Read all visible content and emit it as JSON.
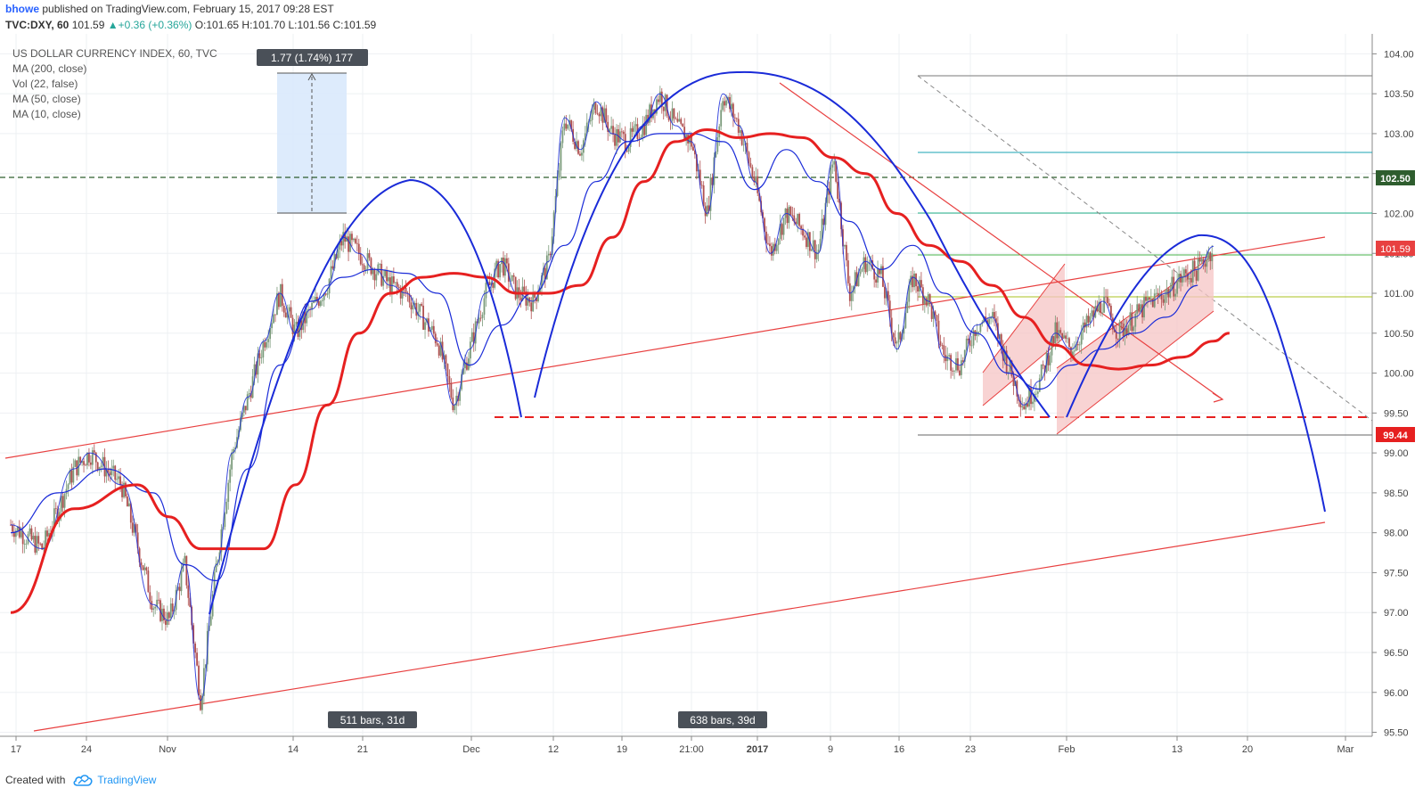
{
  "header": {
    "user": "bhowe",
    "published": "published on TradingView.com, February 15, 2017 09:28 EST",
    "symbol": "TVC:DXY, 60",
    "last": "101.59",
    "change_arrow": "▲",
    "change": "+0.36 (+0.36%)",
    "ohlc": "O:101.65 H:101.70 L:101.56 C:101.59"
  },
  "legend": {
    "title": "US DOLLAR CURRENCY INDEX, 60, TVC",
    "indicators": [
      "MA (200, close)",
      "Vol (22, false)",
      "MA (50, close)",
      "MA (10, close)"
    ]
  },
  "footer": {
    "created_with": "Created with",
    "brand": "TradingView",
    "logo_icon": "cloud-logo-icon"
  },
  "colors": {
    "candle_up": "#7a9a7a",
    "candle_down": "#b05050",
    "ma200": "#e62020",
    "ma50": "#1a2bd8",
    "ma10": "#1a2bd8",
    "arc": "#1a2bd8",
    "trendline": "#e84040",
    "grid": "#eef0f3"
  },
  "chart_data": {
    "type": "line",
    "title": "US DOLLAR CURRENCY INDEX, 60, TVC",
    "xlabel": "",
    "ylabel": "",
    "ylim": [
      95.45,
      104.25
    ],
    "x_ticks": [
      "17",
      "24",
      "Nov",
      "14",
      "21",
      "Dec",
      "12",
      "19",
      "21:00",
      "2017",
      "9",
      "16",
      "23",
      "Feb",
      "13",
      "20",
      "Mar"
    ],
    "y_ticks": [
      "95.50",
      "96.00",
      "96.50",
      "97.00",
      "97.50",
      "98.00",
      "98.50",
      "99.00",
      "99.50",
      "100.00",
      "100.50",
      "101.00",
      "101.50",
      "102.00",
      "102.50",
      "103.00",
      "103.50",
      "104.00"
    ],
    "grid": true,
    "series": [
      {
        "name": "MA (200, close)",
        "x": [
          0,
          4,
          8,
          10,
          12,
          16,
          18,
          20,
          22,
          24,
          26,
          28,
          30,
          32,
          34,
          36,
          38,
          40,
          42,
          44,
          46,
          48,
          50,
          52,
          54,
          56,
          58,
          60,
          62,
          64,
          66,
          68,
          70,
          72,
          74,
          76,
          77
        ],
        "values": [
          97.0,
          98.3,
          98.6,
          98.2,
          97.8,
          97.8,
          98.6,
          99.6,
          100.5,
          101.0,
          101.2,
          101.25,
          101.2,
          101.0,
          101.0,
          101.1,
          101.7,
          102.4,
          102.9,
          103.05,
          102.95,
          103.0,
          102.95,
          102.7,
          102.5,
          102.0,
          101.6,
          101.4,
          101.1,
          100.7,
          100.35,
          100.1,
          100.05,
          100.1,
          100.2,
          100.4,
          100.5
        ]
      },
      {
        "name": "MA (50, close)",
        "x": [
          0,
          3,
          6,
          9,
          11,
          13,
          15,
          17,
          19,
          21,
          23,
          25,
          27,
          29,
          31,
          33,
          35,
          37,
          39,
          41,
          43,
          45,
          47,
          49,
          51,
          53,
          55,
          57,
          59,
          61,
          63,
          65,
          67,
          69,
          71,
          73,
          75
        ],
        "values": [
          98.0,
          98.5,
          98.8,
          98.5,
          97.6,
          97.4,
          98.8,
          100.1,
          100.9,
          101.2,
          101.3,
          101.25,
          101.0,
          100.1,
          100.6,
          101.0,
          101.6,
          102.4,
          102.9,
          103.0,
          103.0,
          102.9,
          102.3,
          102.8,
          102.4,
          101.9,
          101.3,
          101.6,
          101.0,
          100.5,
          100.0,
          99.8,
          100.1,
          100.3,
          100.5,
          100.7,
          101.1
        ]
      },
      {
        "name": "US DOLLAR CURRENCY INDEX, 60",
        "x": [
          0,
          2,
          4,
          5,
          7,
          9,
          10,
          11,
          12,
          13,
          14,
          15,
          16,
          17,
          18,
          19,
          20,
          21,
          22,
          23,
          24,
          25,
          26,
          27,
          28,
          29,
          30,
          31,
          32,
          33,
          34,
          35,
          36,
          37,
          38,
          39,
          40,
          41,
          42,
          43,
          44,
          45,
          46,
          47,
          48,
          49,
          50,
          51,
          52,
          53,
          54,
          55,
          56,
          57,
          58,
          59,
          60,
          61,
          62,
          63,
          64,
          65,
          66,
          67,
          68,
          69,
          70,
          71,
          72,
          73,
          74,
          75,
          76
        ],
        "values": [
          98.1,
          97.8,
          98.8,
          99.0,
          98.6,
          97.1,
          96.9,
          97.6,
          95.9,
          97.6,
          99.0,
          99.7,
          100.4,
          101.0,
          100.5,
          100.8,
          101.1,
          101.7,
          101.5,
          101.3,
          101.1,
          101.0,
          100.7,
          100.4,
          99.6,
          100.3,
          101.0,
          101.4,
          101.0,
          100.9,
          101.4,
          103.2,
          102.8,
          103.4,
          103.0,
          102.9,
          103.1,
          103.5,
          103.1,
          102.9,
          102.0,
          103.5,
          103.1,
          102.4,
          101.5,
          102.0,
          101.8,
          101.5,
          102.7,
          101.0,
          101.4,
          101.2,
          100.3,
          101.2,
          100.9,
          100.2,
          100.1,
          100.6,
          100.7,
          100.1,
          99.6,
          99.9,
          100.5,
          100.3,
          100.6,
          100.9,
          100.5,
          100.7,
          100.9,
          101.0,
          101.2,
          101.3,
          101.59
        ]
      }
    ],
    "annotations": {
      "measure_label": "1.77 (1.74%) 177",
      "bars_label_1": "511 bars, 31d",
      "bars_label_2": "638 bars, 39d",
      "price_102_50": "102.50",
      "price_last": "101.59",
      "price_99_44": "99.44"
    }
  }
}
